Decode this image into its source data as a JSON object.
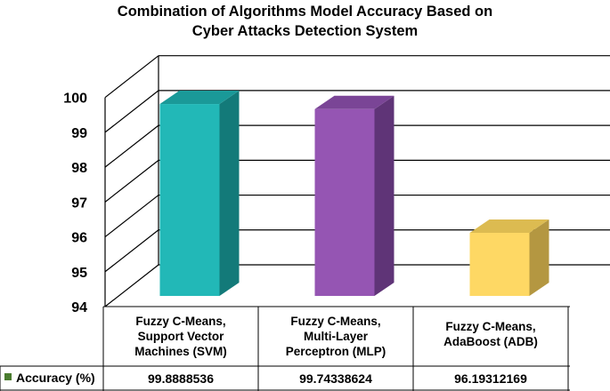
{
  "chart_data": {
    "type": "bar",
    "title_lines": [
      "Combination of Algorithms Model Accuracy Based on",
      "Cyber Attacks Detection System"
    ],
    "categories": [
      [
        "Fuzzy C-Means,",
        "Support Vector",
        "Machines (SVM)"
      ],
      [
        "Fuzzy C-Means,",
        "Multi-Layer",
        "Perceptron (MLP)"
      ],
      [
        "Fuzzy C-Means,",
        "AdaBoost (ADB)"
      ]
    ],
    "series": [
      {
        "name": "Accuracy (%)",
        "values": [
          99.8888536,
          99.74338624,
          96.19312169
        ],
        "value_labels": [
          "99.8888536",
          "99.74338624",
          "96.19312169"
        ],
        "legend_color": "#4a7c2f"
      }
    ],
    "bar_colors": [
      {
        "front": "#22b8b7",
        "side": "#137a79",
        "top": "#1a9998"
      },
      {
        "front": "#9555b3",
        "side": "#5f3477",
        "top": "#7a4596"
      },
      {
        "front": "#fed864",
        "side": "#b49741",
        "top": "#dcbb51"
      }
    ],
    "y_ticks": [
      94,
      95,
      96,
      97,
      98,
      99,
      100
    ],
    "ylim": [
      94,
      100.4
    ],
    "grid": true,
    "legend_placement": "data-table-below"
  }
}
